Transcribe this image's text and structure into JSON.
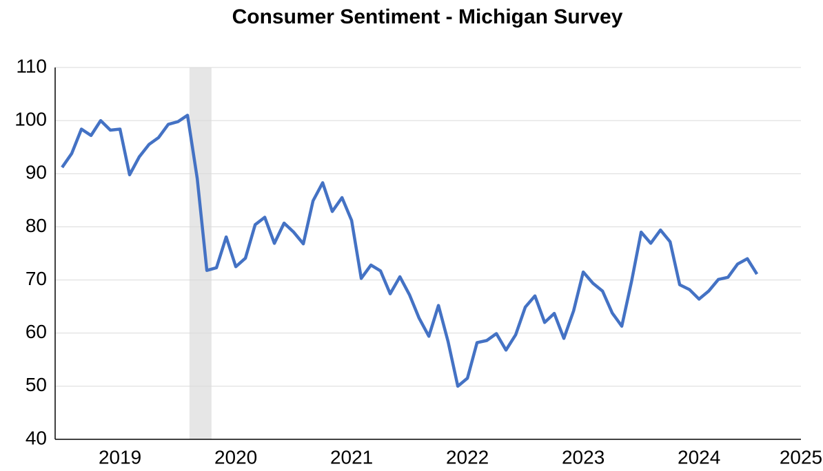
{
  "chart_data": {
    "type": "line",
    "title": "Consumer Sentiment - Michigan Survey",
    "x": [
      2019,
      2019.083,
      2019.167,
      2019.25,
      2019.333,
      2019.417,
      2019.5,
      2019.583,
      2019.667,
      2019.75,
      2019.833,
      2019.917,
      2020,
      2020.083,
      2020.167,
      2020.25,
      2020.333,
      2020.417,
      2020.5,
      2020.583,
      2020.667,
      2020.75,
      2020.833,
      2020.917,
      2021,
      2021.083,
      2021.167,
      2021.25,
      2021.333,
      2021.417,
      2021.5,
      2021.583,
      2021.667,
      2021.75,
      2021.833,
      2021.917,
      2022,
      2022.083,
      2022.167,
      2022.25,
      2022.333,
      2022.417,
      2022.5,
      2022.583,
      2022.667,
      2022.75,
      2022.833,
      2022.917,
      2023,
      2023.083,
      2023.167,
      2023.25,
      2023.333,
      2023.417,
      2023.5,
      2023.583,
      2023.667,
      2023.75,
      2023.833,
      2023.917,
      2024,
      2024.083,
      2024.167,
      2024.25,
      2024.333,
      2024.417,
      2024.5,
      2024.583,
      2024.667,
      2024.75,
      2024.833,
      2024.917,
      2025
    ],
    "series": [
      {
        "color": "#4472c4",
        "values": [
          91.2,
          93.8,
          98.4,
          97.2,
          100,
          98.2,
          98.4,
          89.8,
          93.2,
          95.5,
          96.8,
          99.3,
          99.8,
          101,
          89.1,
          71.8,
          72.3,
          78.1,
          72.5,
          74.1,
          80.4,
          81.8,
          76.9,
          80.7,
          79,
          76.8,
          84.9,
          88.3,
          82.9,
          85.5,
          81.2,
          70.3,
          72.8,
          71.7,
          67.4,
          70.6,
          67.2,
          62.8,
          59.4,
          65.2,
          58.4,
          50,
          51.5,
          58.2,
          58.6,
          59.9,
          56.8,
          59.7,
          64.9,
          67,
          62,
          63.7,
          59,
          64.2,
          71.5,
          69.4,
          67.9,
          63.8,
          61.3,
          69.7,
          79,
          76.9,
          79.4,
          77.2,
          69.1,
          68.2,
          66.4,
          67.9,
          70.1,
          70.5,
          73,
          74,
          71.1
        ]
      }
    ],
    "xlim": [
      2018.94,
      2025.38
    ],
    "xticks": [
      {
        "value": 2019.5,
        "label": "2019"
      },
      {
        "value": 2020.5,
        "label": "2020"
      },
      {
        "value": 2021.5,
        "label": "2021"
      },
      {
        "value": 2022.5,
        "label": "2022"
      },
      {
        "value": 2023.5,
        "label": "2023"
      },
      {
        "value": 2024.5,
        "label": "2024"
      },
      {
        "value": 2025.38,
        "label": "2025"
      }
    ],
    "ylim": [
      40,
      110
    ],
    "yticks": [
      40,
      50,
      60,
      70,
      80,
      90,
      100,
      110
    ],
    "grid": true,
    "shaded_span": [
      2020.1,
      2020.29
    ],
    "shaded_color": "#e6e6e6"
  }
}
